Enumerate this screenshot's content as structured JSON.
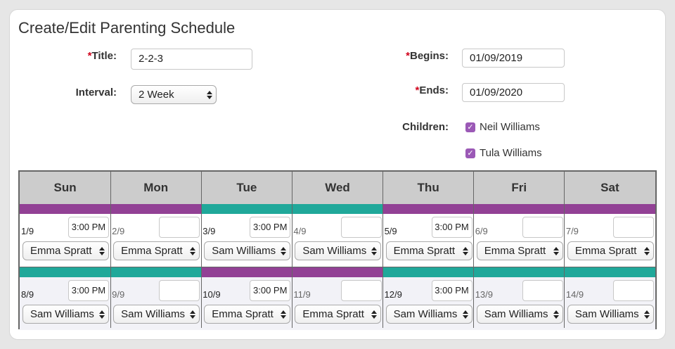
{
  "page_title": "Create/Edit Parenting Schedule",
  "form": {
    "required_mark": "*",
    "title_label": "Title:",
    "title_value": "2-2-3",
    "interval_label": "Interval:",
    "interval_value": "2 Week",
    "begins_label": "Begins:",
    "begins_value": "01/09/2019",
    "ends_label": "Ends:",
    "ends_value": "01/09/2020",
    "children_label": "Children:",
    "children": [
      {
        "name": "Neil Williams",
        "checked": true
      },
      {
        "name": "Tula Williams",
        "checked": true
      }
    ],
    "checkmark": "✓"
  },
  "colors": {
    "purple": "#924195",
    "teal": "#20a89a",
    "header_bg": "#cccccc",
    "row_bg_2": "#f2f2f7"
  },
  "calendar": {
    "days": [
      "Sun",
      "Mon",
      "Tue",
      "Wed",
      "Thu",
      "Fri",
      "Sat"
    ],
    "rows": [
      {
        "bars": [
          "purple",
          "purple",
          "teal",
          "teal",
          "purple",
          "purple",
          "purple"
        ],
        "cells": [
          {
            "date": "1/9",
            "time": "3:00 PM",
            "parent": "Emma Spratt"
          },
          {
            "date": "2/9",
            "time": "",
            "parent": "Emma Spratt"
          },
          {
            "date": "3/9",
            "time": "3:00 PM",
            "parent": "Sam Williams"
          },
          {
            "date": "4/9",
            "time": "",
            "parent": "Sam Williams"
          },
          {
            "date": "5/9",
            "time": "3:00 PM",
            "parent": "Emma Spratt"
          },
          {
            "date": "6/9",
            "time": "",
            "parent": "Emma Spratt"
          },
          {
            "date": "7/9",
            "time": "",
            "parent": "Emma Spratt"
          }
        ]
      },
      {
        "bars": [
          "teal",
          "teal",
          "purple",
          "purple",
          "teal",
          "teal",
          "teal"
        ],
        "cells": [
          {
            "date": "8/9",
            "time": "3:00 PM",
            "parent": "Sam Williams"
          },
          {
            "date": "9/9",
            "time": "",
            "parent": "Sam Williams"
          },
          {
            "date": "10/9",
            "time": "3:00 PM",
            "parent": "Emma Spratt"
          },
          {
            "date": "11/9",
            "time": "",
            "parent": "Emma Spratt"
          },
          {
            "date": "12/9",
            "time": "3:00 PM",
            "parent": "Sam Williams"
          },
          {
            "date": "13/9",
            "time": "",
            "parent": "Sam Williams"
          },
          {
            "date": "14/9",
            "time": "",
            "parent": "Sam Williams"
          }
        ]
      }
    ]
  }
}
